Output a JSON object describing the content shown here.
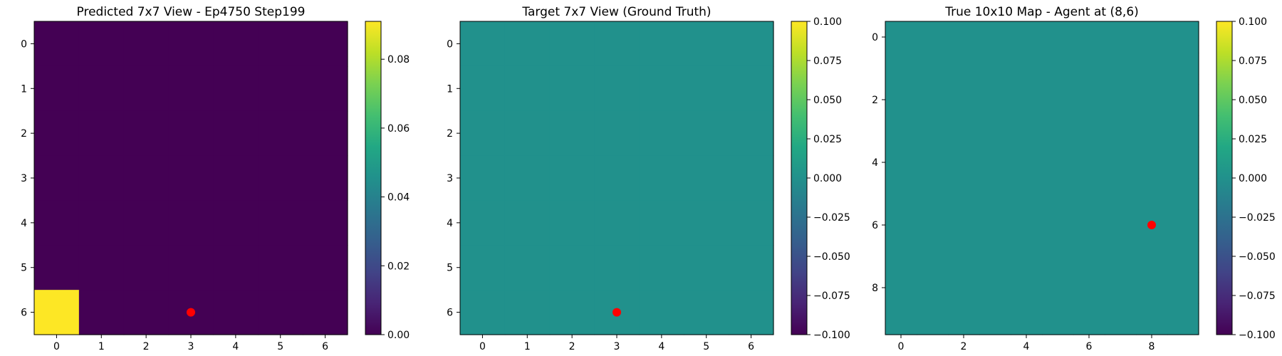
{
  "chart_data": [
    {
      "type": "heatmap",
      "title": "Predicted 7x7 View - Ep4750 Step199",
      "rows": 7,
      "cols": 7,
      "values": [
        [
          0,
          0,
          0,
          0,
          0,
          0,
          0
        ],
        [
          0,
          0,
          0,
          0,
          0,
          0,
          0
        ],
        [
          0,
          0,
          0,
          0,
          0,
          0,
          0
        ],
        [
          0,
          0,
          0,
          0,
          0,
          0,
          0
        ],
        [
          0,
          0,
          0,
          0,
          0,
          0,
          0
        ],
        [
          0,
          0,
          0,
          0,
          0,
          0,
          0
        ],
        [
          0.091,
          0,
          0,
          0,
          0,
          0,
          0
        ]
      ],
      "xticks": [
        "0",
        "1",
        "2",
        "3",
        "4",
        "5",
        "6"
      ],
      "yticks": [
        "0",
        "1",
        "2",
        "3",
        "4",
        "5",
        "6"
      ],
      "vmin": 0,
      "vmax": 0.091,
      "colorbar_ticks": [
        0,
        0.02,
        0.04,
        0.06,
        0.08
      ],
      "colorbar_labels": [
        "0.00",
        "0.02",
        "0.04",
        "0.06",
        "0.08"
      ],
      "agent": {
        "x": 3,
        "y": 6
      },
      "agent_color": "#ff0000"
    },
    {
      "type": "heatmap",
      "title": "Target 7x7 View (Ground Truth)",
      "rows": 7,
      "cols": 7,
      "uniform_value": 0,
      "xticks": [
        "0",
        "1",
        "2",
        "3",
        "4",
        "5",
        "6"
      ],
      "yticks": [
        "0",
        "1",
        "2",
        "3",
        "4",
        "5",
        "6"
      ],
      "vmin": -0.1,
      "vmax": 0.1,
      "colorbar_ticks": [
        -0.1,
        -0.075,
        -0.05,
        -0.025,
        0,
        0.025,
        0.05,
        0.075,
        0.1
      ],
      "colorbar_labels": [
        "−0.100",
        "−0.075",
        "−0.050",
        "−0.025",
        "0.000",
        "0.025",
        "0.050",
        "0.075",
        "0.100"
      ],
      "agent": {
        "x": 3,
        "y": 6
      },
      "agent_color": "#ff0000"
    },
    {
      "type": "heatmap",
      "title": "True 10x10 Map - Agent at (8,6)",
      "rows": 10,
      "cols": 10,
      "uniform_value": 0,
      "xtick_values": [
        0,
        2,
        4,
        6,
        8
      ],
      "xticks": [
        "0",
        "2",
        "4",
        "6",
        "8"
      ],
      "ytick_values": [
        0,
        2,
        4,
        6,
        8
      ],
      "yticks": [
        "0",
        "2",
        "4",
        "6",
        "8"
      ],
      "vmin": -0.1,
      "vmax": 0.1,
      "colorbar_ticks": [
        -0.1,
        -0.075,
        -0.05,
        -0.025,
        0,
        0.025,
        0.05,
        0.075,
        0.1
      ],
      "colorbar_labels": [
        "−0.100",
        "−0.075",
        "−0.050",
        "−0.025",
        "0.000",
        "0.025",
        "0.050",
        "0.075",
        "0.100"
      ],
      "agent": {
        "x": 8,
        "y": 6
      },
      "agent_color": "#ff0000"
    }
  ]
}
